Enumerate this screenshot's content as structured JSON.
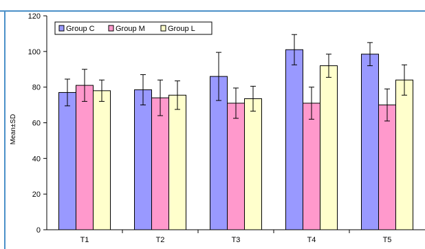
{
  "chart_data": {
    "type": "bar",
    "title": "",
    "xlabel": "",
    "ylabel": "Mean±SD",
    "ylim": [
      0,
      120
    ],
    "yticks": [
      0,
      20,
      40,
      60,
      80,
      100,
      120
    ],
    "categories": [
      "T1",
      "T2",
      "T3",
      "T4",
      "T5"
    ],
    "legend_position": "top-left",
    "grid": false,
    "error_bars": true,
    "series": [
      {
        "name": "Group C",
        "color": "#9999ff",
        "values": [
          77,
          78.5,
          86,
          101,
          98.5
        ],
        "errors": [
          7.5,
          8.5,
          13.5,
          8.5,
          6.5
        ]
      },
      {
        "name": "Group M",
        "color": "#ff99cc",
        "values": [
          81,
          74,
          71,
          71,
          70
        ],
        "errors": [
          9,
          10,
          8.5,
          9,
          9
        ]
      },
      {
        "name": "Group L",
        "color": "#ffffcc",
        "values": [
          78,
          75.5,
          73.5,
          92,
          84
        ],
        "errors": [
          6,
          8,
          7,
          6.5,
          8.5
        ]
      }
    ],
    "frame_color": "#4a90c8"
  }
}
